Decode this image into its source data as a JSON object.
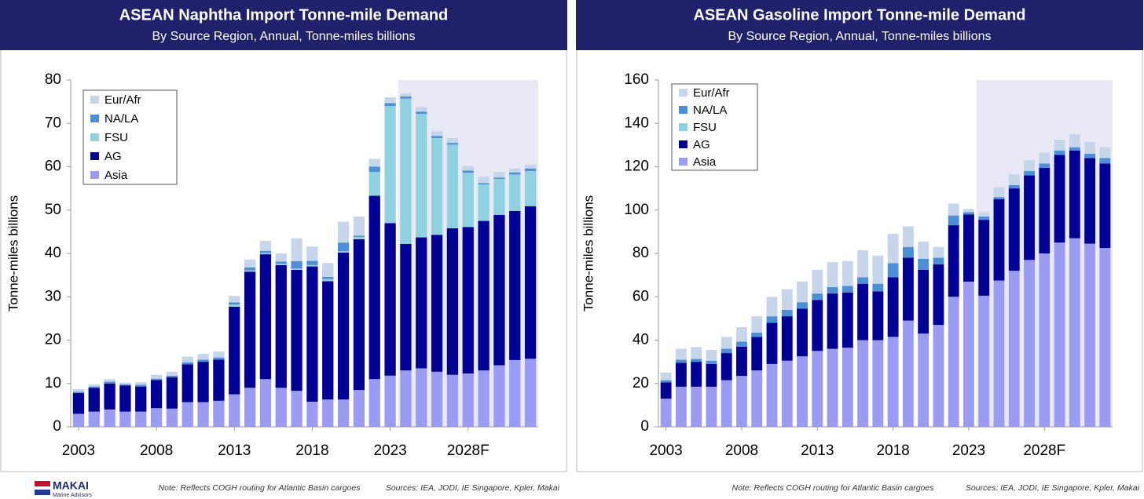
{
  "chart_data": [
    {
      "type": "stacked_bar",
      "title": "ASEAN Naphtha Import Tonne-mile Demand",
      "subtitle": "By Source Region, Annual, Tonne-miles billions",
      "y_label": "Tonne-miles billions",
      "categories": [
        "2003",
        null,
        null,
        null,
        null,
        "2008",
        null,
        null,
        null,
        null,
        "2013",
        null,
        null,
        null,
        null,
        "2018",
        null,
        null,
        null,
        null,
        "2023",
        null,
        null,
        null,
        null,
        "2028F",
        null,
        null,
        null,
        null
      ],
      "series": [
        {
          "name": "Asia",
          "color": "#9b9bf4",
          "values": [
            3,
            3.5,
            4,
            3.5,
            3.5,
            4.3,
            4.2,
            5.7,
            5.7,
            6,
            7.5,
            9,
            11,
            9,
            8.3,
            5.8,
            6.3,
            6.3,
            8.5,
            11,
            11.8,
            13,
            13.5,
            12.7,
            12,
            12.3,
            13,
            14.2,
            15.4,
            15.7
          ]
        },
        {
          "name": "AG",
          "color": "#000096",
          "values": [
            4.8,
            5.5,
            6,
            6,
            5.8,
            6.5,
            7.2,
            8.7,
            9.3,
            9.5,
            20.2,
            26.8,
            28.8,
            28.3,
            27.9,
            31.2,
            27.3,
            33.9,
            34.8,
            42.3,
            35.2,
            29.2,
            30.2,
            31.6,
            33.8,
            33.8,
            34.5,
            34.7,
            34.4,
            35.2
          ]
        },
        {
          "name": "FSU",
          "color": "#8fd1e1",
          "values": [
            0,
            0,
            0,
            0,
            0,
            0,
            0,
            0,
            0,
            0,
            0.5,
            0.3,
            0.3,
            0.3,
            0.3,
            0.3,
            0.5,
            0.3,
            0.5,
            5.5,
            27,
            33.5,
            28.5,
            22.3,
            19.3,
            12.5,
            8.4,
            8.3,
            8.4,
            8.1
          ]
        },
        {
          "name": "NA/LA",
          "color": "#4d8fd6",
          "values": [
            0.3,
            0.3,
            0.4,
            0.3,
            0.4,
            0.3,
            0.4,
            0.5,
            0.5,
            0.5,
            0.5,
            0.7,
            0.5,
            0.5,
            1.7,
            1,
            0.5,
            2,
            0.3,
            1.2,
            0.7,
            0.5,
            0.5,
            0.5,
            0.4,
            0.5,
            0.3,
            0.3,
            0.5,
            0.6
          ]
        },
        {
          "name": "Eur/Afr",
          "color": "#c6d5ea",
          "values": [
            0.6,
            0.5,
            0.6,
            0.4,
            0.6,
            0.9,
            0.9,
            1.3,
            1.3,
            1.4,
            1.5,
            1.8,
            2.3,
            1.9,
            5.3,
            3.3,
            3.2,
            4.8,
            4.4,
            1.8,
            1.3,
            0.7,
            1.1,
            1.1,
            1.1,
            1.1,
            1.5,
            1.3,
            0.9,
            0.9
          ]
        }
      ],
      "ylim": [
        0,
        80
      ],
      "yticks": [
        0,
        10,
        20,
        30,
        40,
        50,
        60,
        70,
        80
      ],
      "legend": "upper left",
      "note": "Note: Reflects COGH routing for Atlantic Basin cargoes",
      "source": "Sources: IEA, JODI, IE Singapore, Kpler, Makai"
    },
    {
      "type": "stacked_bar",
      "title": "ASEAN Gasoline Import Tonne-mile Demand",
      "subtitle": "By Source Region, Annual, Tonne-miles billions",
      "y_label": "Tonne-miles billions",
      "categories": [
        "2003",
        null,
        null,
        null,
        null,
        "2008",
        null,
        null,
        null,
        null,
        "2013",
        null,
        null,
        null,
        null,
        "2018",
        null,
        null,
        null,
        null,
        "2023",
        null,
        null,
        null,
        null,
        "2028F",
        null,
        null,
        null,
        null
      ],
      "series": [
        {
          "name": "Asia",
          "color": "#9b9bf4",
          "values": [
            13,
            18.5,
            18.5,
            18.5,
            21.5,
            23.5,
            26,
            29,
            30.5,
            32.5,
            35,
            36,
            36.5,
            40,
            40,
            41.5,
            49,
            43,
            47,
            60,
            67,
            60.5,
            67.5,
            72,
            77,
            80,
            85,
            87,
            84.5,
            82.5
          ]
        },
        {
          "name": "AG",
          "color": "#000096",
          "values": [
            7.5,
            11,
            11.5,
            10.5,
            12.5,
            13.5,
            15.5,
            19,
            20.5,
            22,
            23.5,
            25.5,
            25.5,
            26,
            22.5,
            27.5,
            29,
            29.5,
            28,
            33,
            31,
            35,
            37.5,
            38,
            39,
            39.5,
            40.5,
            40.5,
            39.5,
            39
          ]
        },
        {
          "name": "FSU",
          "color": "#8fd1e1",
          "values": [
            0,
            0,
            0,
            0,
            0,
            0,
            0,
            0,
            0,
            0,
            0,
            0,
            0,
            0,
            0,
            0,
            0,
            0,
            0,
            0,
            0,
            0,
            0,
            0,
            0,
            0,
            0,
            0,
            0,
            0
          ]
        },
        {
          "name": "NA/LA",
          "color": "#4d8fd6",
          "values": [
            1,
            1.5,
            1.3,
            1.5,
            2,
            2.3,
            2,
            3,
            3,
            3,
            3,
            3,
            3,
            3,
            3.5,
            6.5,
            5,
            5,
            3,
            4.5,
            1,
            1.5,
            1,
            1.5,
            2,
            2,
            2,
            1.5,
            2,
            2.5
          ]
        },
        {
          "name": "Eur/Afr",
          "color": "#c6d5ea",
          "values": [
            3.5,
            5,
            5.5,
            5,
            5.5,
            6.7,
            7.5,
            9,
            9.5,
            9.5,
            11,
            11.5,
            11.5,
            12.5,
            13,
            13.5,
            9.5,
            8,
            5,
            5.5,
            1.5,
            2,
            4.5,
            5,
            5,
            5,
            5,
            6,
            5.5,
            5
          ]
        }
      ],
      "ylim": [
        0,
        160
      ],
      "yticks": [
        0,
        20,
        40,
        60,
        80,
        100,
        120,
        140,
        160
      ],
      "legend": "upper left",
      "note": "Note: Reflects COGH routing for Atlantic Basin cargoes",
      "source": "Sources: IEA, JODI, IE Singapore, Kpler, Makai"
    }
  ],
  "logo": {
    "name": "MAKAI",
    "tagline": "Marine Advisors"
  }
}
